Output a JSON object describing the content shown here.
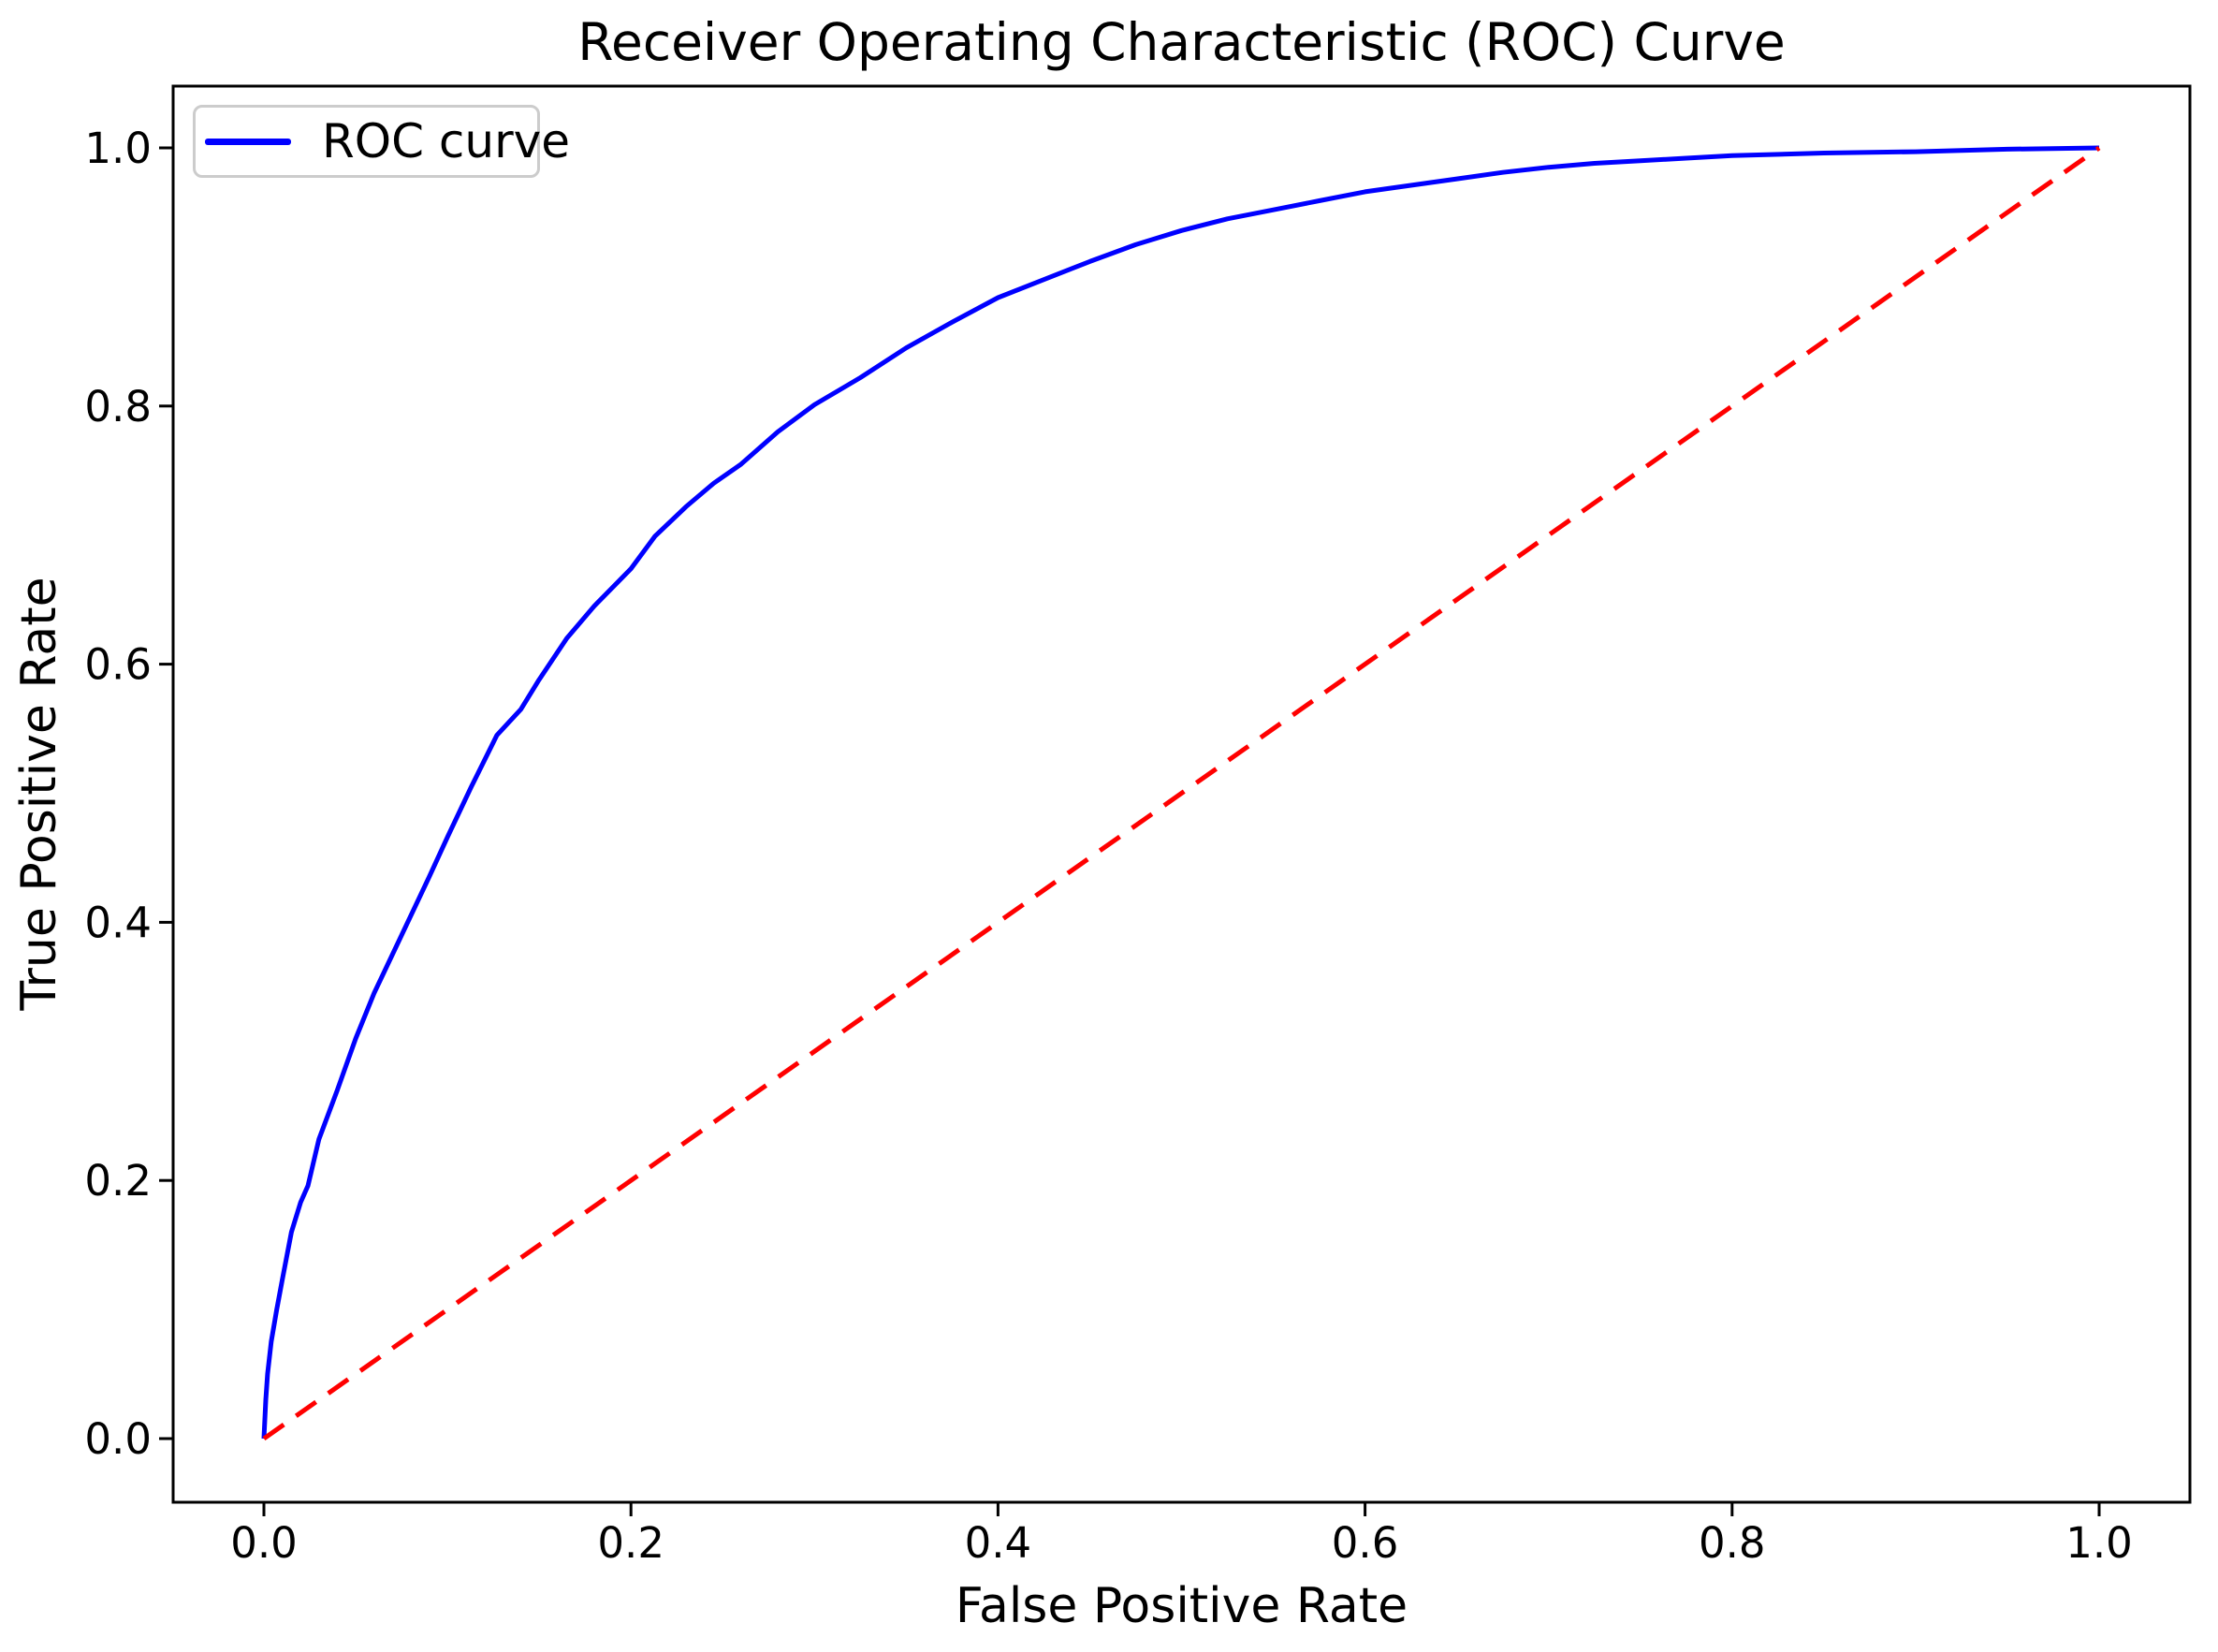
{
  "chart_data": {
    "type": "line",
    "title": "Receiver Operating Characteristic (ROC) Curve",
    "xlabel": "False Positive Rate",
    "ylabel": "True Positive Rate",
    "xlim": [
      -0.05,
      1.05
    ],
    "ylim": [
      -0.048,
      1.048
    ],
    "grid": false,
    "x_tick_labels": [
      "0.0",
      "0.2",
      "0.4",
      "0.6",
      "0.8",
      "1.0"
    ],
    "y_tick_labels": [
      "0.0",
      "0.2",
      "0.4",
      "0.6",
      "0.8",
      "1.0"
    ],
    "legend": {
      "position": "upper-left",
      "entries": [
        {
          "label": "ROC curve",
          "color": "#0000FF",
          "style": "solid"
        }
      ]
    },
    "colors": {
      "roc_curve": "#0000FF",
      "diagonal": "#FF0000",
      "axes": "#000000",
      "text": "#000000",
      "legend_border": "#CCCCCC",
      "background": "#FFFFFF"
    },
    "series": [
      {
        "name": "ROC curve",
        "color": "#0000FF",
        "style": "solid",
        "points": [
          [
            0.0,
            0.0
          ],
          [
            0.001,
            0.03
          ],
          [
            0.002,
            0.05
          ],
          [
            0.004,
            0.075
          ],
          [
            0.007,
            0.1
          ],
          [
            0.01,
            0.123
          ],
          [
            0.015,
            0.16
          ],
          [
            0.02,
            0.183
          ],
          [
            0.024,
            0.196
          ],
          [
            0.03,
            0.232
          ],
          [
            0.04,
            0.27
          ],
          [
            0.05,
            0.31
          ],
          [
            0.06,
            0.345
          ],
          [
            0.075,
            0.39
          ],
          [
            0.09,
            0.435
          ],
          [
            0.1,
            0.466
          ],
          [
            0.113,
            0.505
          ],
          [
            0.127,
            0.545
          ],
          [
            0.14,
            0.565
          ],
          [
            0.15,
            0.588
          ],
          [
            0.165,
            0.62
          ],
          [
            0.18,
            0.645
          ],
          [
            0.2,
            0.674
          ],
          [
            0.213,
            0.699
          ],
          [
            0.23,
            0.722
          ],
          [
            0.245,
            0.74
          ],
          [
            0.26,
            0.755
          ],
          [
            0.28,
            0.78
          ],
          [
            0.3,
            0.801
          ],
          [
            0.325,
            0.822
          ],
          [
            0.35,
            0.845
          ],
          [
            0.375,
            0.865
          ],
          [
            0.4,
            0.884
          ],
          [
            0.425,
            0.898
          ],
          [
            0.45,
            0.912
          ],
          [
            0.475,
            0.925
          ],
          [
            0.5,
            0.936
          ],
          [
            0.525,
            0.945
          ],
          [
            0.55,
            0.952
          ],
          [
            0.575,
            0.959
          ],
          [
            0.6,
            0.966
          ],
          [
            0.625,
            0.971
          ],
          [
            0.65,
            0.976
          ],
          [
            0.675,
            0.981
          ],
          [
            0.7,
            0.985
          ],
          [
            0.725,
            0.988
          ],
          [
            0.75,
            0.99
          ],
          [
            0.775,
            0.992
          ],
          [
            0.8,
            0.994
          ],
          [
            0.85,
            0.996
          ],
          [
            0.9,
            0.997
          ],
          [
            0.95,
            0.999
          ],
          [
            1.0,
            1.0
          ]
        ]
      },
      {
        "name": "chance diagonal",
        "color": "#FF0000",
        "style": "dashed",
        "points": [
          [
            0.0,
            0.0
          ],
          [
            1.0,
            1.0
          ]
        ]
      }
    ]
  }
}
